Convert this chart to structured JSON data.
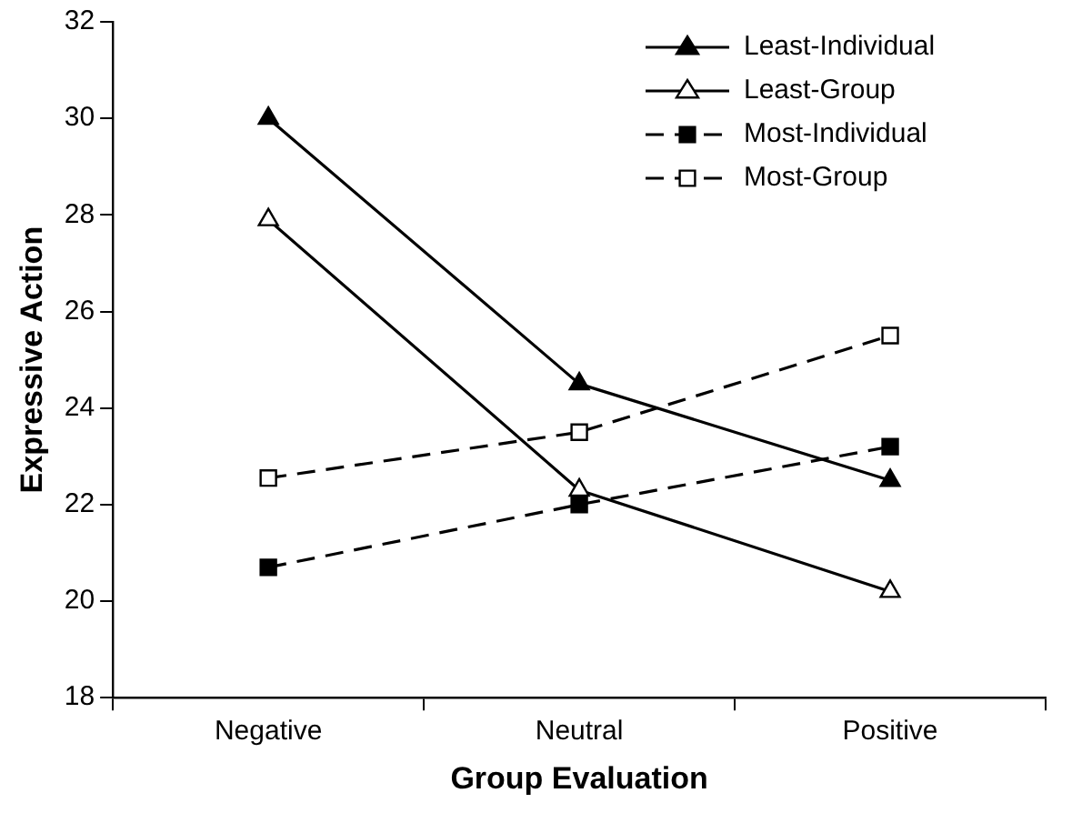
{
  "chart_data": {
    "type": "line",
    "xlabel": "Group Evaluation",
    "ylabel": "Expressive Action",
    "categories": [
      "Negative",
      "Neutral",
      "Positive"
    ],
    "ylim": [
      18,
      32
    ],
    "yticks": [
      18,
      20,
      22,
      24,
      26,
      28,
      30,
      32
    ],
    "grid": false,
    "legend": "top right",
    "series": [
      {
        "name": "Least-Individual",
        "color": "#000000",
        "marker": "triangle",
        "line_style": "solid",
        "values": [
          30,
          24.5,
          22.5
        ]
      },
      {
        "name": "Least-Group",
        "color": "#000000",
        "marker": "triangle",
        "line_style": "solid",
        "values": [
          27.9,
          22.3,
          20.2
        ]
      },
      {
        "name": "Most-Individual",
        "color": "#000000",
        "marker": "square",
        "line_style": "dashed",
        "values": [
          20.7,
          22.0,
          23.2
        ]
      },
      {
        "name": "Most-Group",
        "color": "#000000",
        "marker": "square",
        "line_style": "dashed",
        "values": [
          22.55,
          23.5,
          25.5
        ]
      }
    ]
  }
}
